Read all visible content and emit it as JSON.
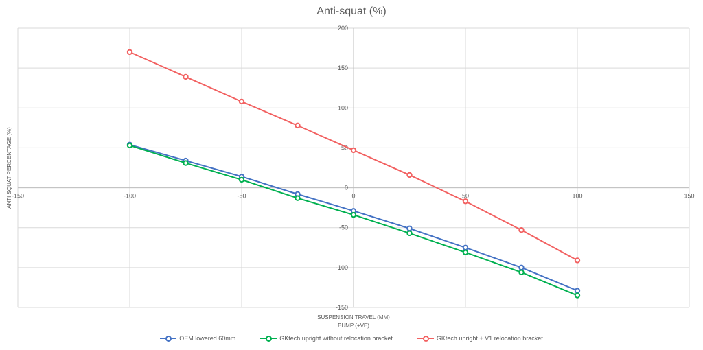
{
  "chart_data": {
    "type": "scatter",
    "title": "Anti-squat (%)",
    "xlabel_lines": [
      "SUSPENSION TRAVEL (MM)",
      "BUMP (+VE)"
    ],
    "ylabel": "ANTI SQUAT PERCENTAGE (%)",
    "xlim": [
      -150,
      150
    ],
    "ylim": [
      -150,
      200
    ],
    "xticks": [
      -150,
      -100,
      -50,
      0,
      50,
      100,
      150
    ],
    "yticks": [
      -150,
      -100,
      -50,
      0,
      50,
      100,
      150,
      200
    ],
    "grid": true,
    "legend_position": "bottom",
    "series": [
      {
        "name": "OEM lowered 60mm",
        "color": "#4472c4",
        "x": [
          -100,
          -75,
          -50,
          -25,
          0,
          25,
          50,
          75,
          100
        ],
        "y": [
          54,
          34,
          14,
          -8,
          -29,
          -51,
          -75,
          -100,
          -129
        ]
      },
      {
        "name": "GKtech upright without relocation bracket",
        "color": "#00b050",
        "x": [
          -100,
          -75,
          -50,
          -25,
          0,
          25,
          50,
          75,
          100
        ],
        "y": [
          53,
          31,
          10,
          -13,
          -34,
          -57,
          -81,
          -106,
          -135
        ]
      },
      {
        "name": "GKtech upright + V1 relocation bracket",
        "color": "#f26161",
        "x": [
          -100,
          -75,
          -50,
          -25,
          0,
          25,
          50,
          75,
          100
        ],
        "y": [
          170,
          139,
          108,
          78,
          47,
          16,
          -17,
          -53,
          -91
        ]
      }
    ]
  }
}
